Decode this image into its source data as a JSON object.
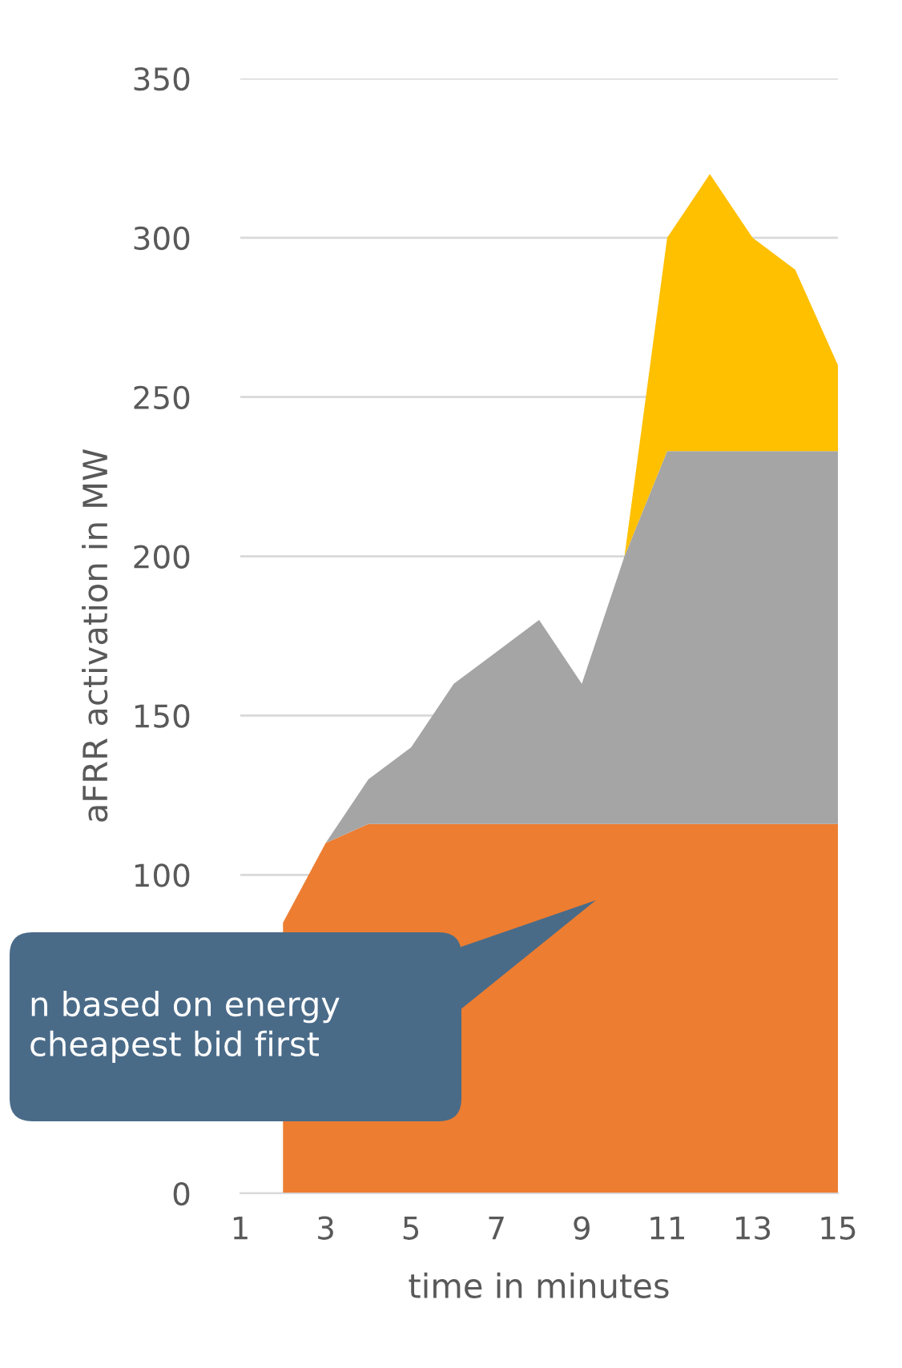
{
  "chart_data": {
    "type": "area",
    "stacked": true,
    "x": [
      2,
      3,
      4,
      5,
      6,
      7,
      8,
      9,
      10,
      11,
      12,
      13,
      14,
      15
    ],
    "series": [
      {
        "color": "#ed7d31",
        "values": [
          85,
          110,
          116,
          116,
          116,
          116,
          116,
          116,
          116,
          116,
          116,
          116,
          116,
          116
        ]
      },
      {
        "color": "#a5a5a5",
        "values": [
          0,
          0,
          14,
          24,
          44,
          54,
          64,
          44,
          84,
          117,
          117,
          117,
          117,
          117
        ]
      },
      {
        "color": "#ffc000",
        "values": [
          0,
          0,
          0,
          0,
          0,
          0,
          0,
          0,
          0,
          67,
          87,
          67,
          57,
          27
        ]
      }
    ],
    "xlabel": "time in minutes",
    "ylabel": "aFRR activation in MW",
    "xlim": [
      1,
      15
    ],
    "xticks": [
      1,
      3,
      5,
      7,
      9,
      11,
      13,
      15
    ],
    "ylim": [
      0,
      350
    ],
    "yticks": [
      0,
      100,
      150,
      200,
      250,
      300,
      350
    ],
    "grid": "y",
    "annotations": [
      "n based on energy\ncheapest bid first"
    ]
  }
}
